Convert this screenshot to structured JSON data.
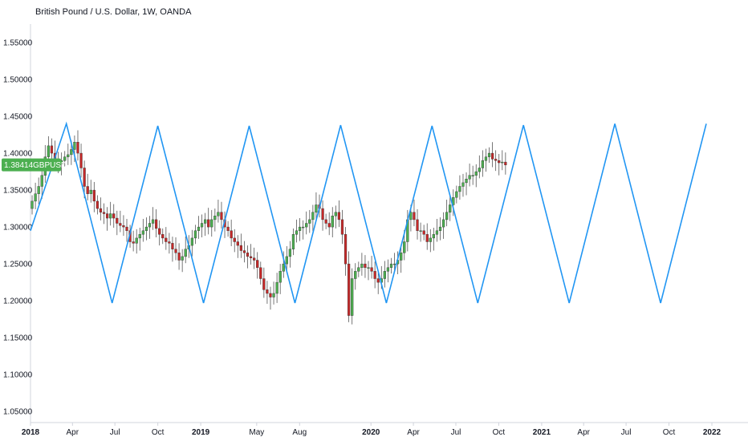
{
  "header": {
    "title": "British Pound / U.S. Dollar, 1W, OANDA"
  },
  "price_tag": {
    "price": "1.38414",
    "symbol": "GBPUSD",
    "color": "#4caf50"
  },
  "colors": {
    "up": "#4caf50",
    "down": "#c62828",
    "wave": "#2196f3",
    "axis": "#d1d4dc"
  },
  "chart_data": {
    "type": "candlestick",
    "title": "British Pound / U.S. Dollar, 1W, OANDA",
    "y_ticks": [
      "1.55000",
      "1.50000",
      "1.45000",
      "1.40000",
      "1.35000",
      "1.30000",
      "1.25000",
      "1.20000",
      "1.15000",
      "1.10000",
      "1.05000"
    ],
    "ylim": [
      1.035,
      1.575
    ],
    "x_ticks": [
      {
        "label": "2018",
        "date": "2018-01-01",
        "bold": true
      },
      {
        "label": "Apr",
        "date": "2018-04-01",
        "bold": false
      },
      {
        "label": "Jul",
        "date": "2018-07-01",
        "bold": false
      },
      {
        "label": "Oct",
        "date": "2018-10-01",
        "bold": false
      },
      {
        "label": "2019",
        "date": "2019-01-01",
        "bold": true
      },
      {
        "label": "May",
        "date": "2019-05-01",
        "bold": false
      },
      {
        "label": "Aug",
        "date": "2019-08-01",
        "bold": false
      },
      {
        "label": "2020",
        "date": "2020-01-01",
        "bold": true
      },
      {
        "label": "Apr",
        "date": "2020-04-01",
        "bold": false
      },
      {
        "label": "Jul",
        "date": "2020-07-01",
        "bold": false
      },
      {
        "label": "Oct",
        "date": "2020-10-01",
        "bold": false
      },
      {
        "label": "2021",
        "date": "2021-01-01",
        "bold": true
      },
      {
        "label": "Apr",
        "date": "2021-04-01",
        "bold": false
      },
      {
        "label": "Jul",
        "date": "2021-07-01",
        "bold": false
      },
      {
        "label": "Oct",
        "date": "2021-10-01",
        "bold": false
      },
      {
        "label": "2022",
        "date": "2022-01-01",
        "bold": true
      }
    ],
    "price_closes": [
      1.335,
      1.345,
      1.355,
      1.37,
      1.395,
      1.41,
      1.4,
      1.388,
      1.385,
      1.39,
      1.395,
      1.398,
      1.405,
      1.415,
      1.4,
      1.38,
      1.355,
      1.345,
      1.35,
      1.335,
      1.325,
      1.32,
      1.318,
      1.312,
      1.318,
      1.312,
      1.305,
      1.302,
      1.3,
      1.295,
      1.28,
      1.278,
      1.285,
      1.29,
      1.295,
      1.3,
      1.305,
      1.31,
      1.298,
      1.29,
      1.285,
      1.28,
      1.278,
      1.27,
      1.265,
      1.255,
      1.26,
      1.27,
      1.275,
      1.285,
      1.295,
      1.3,
      1.305,
      1.31,
      1.3,
      1.31,
      1.315,
      1.32,
      1.31,
      1.3,
      1.295,
      1.285,
      1.28,
      1.275,
      1.268,
      1.265,
      1.26,
      1.258,
      1.255,
      1.245,
      1.23,
      1.215,
      1.21,
      1.205,
      1.21,
      1.225,
      1.24,
      1.25,
      1.26,
      1.27,
      1.29,
      1.295,
      1.3,
      1.3,
      1.305,
      1.31,
      1.32,
      1.33,
      1.325,
      1.31,
      1.305,
      1.3,
      1.315,
      1.32,
      1.31,
      1.29,
      1.25,
      1.18,
      1.23,
      1.24,
      1.245,
      1.25,
      1.245,
      1.245,
      1.24,
      1.23,
      1.225,
      1.23,
      1.24,
      1.245,
      1.25,
      1.25,
      1.255,
      1.265,
      1.28,
      1.31,
      1.32,
      1.31,
      1.295,
      1.295,
      1.29,
      1.28,
      1.285,
      1.29,
      1.295,
      1.3,
      1.31,
      1.32,
      1.33,
      1.34,
      1.348,
      1.355,
      1.36,
      1.365,
      1.37,
      1.37,
      1.375,
      1.38,
      1.39,
      1.395,
      1.4,
      1.392,
      1.39,
      1.387,
      1.388,
      1.384
    ],
    "price_start": "2018-01-01",
    "series": [
      {
        "name": "",
        "type": "line",
        "points": [
          {
            "x": "2018-01-01",
            "y": 1.295
          },
          {
            "x": "2018-03-19",
            "y": 1.44
          },
          {
            "x": "2018-06-25",
            "y": 1.197
          },
          {
            "x": "2018-10-01",
            "y": 1.437
          },
          {
            "x": "2019-01-07",
            "y": 1.197
          },
          {
            "x": "2019-04-15",
            "y": 1.437
          },
          {
            "x": "2019-07-22",
            "y": 1.197
          },
          {
            "x": "2019-10-28",
            "y": 1.438
          },
          {
            "x": "2020-02-03",
            "y": 1.197
          },
          {
            "x": "2020-05-11",
            "y": 1.437
          },
          {
            "x": "2020-08-17",
            "y": 1.197
          },
          {
            "x": "2020-11-23",
            "y": 1.438
          },
          {
            "x": "2021-03-01",
            "y": 1.197
          },
          {
            "x": "2021-06-07",
            "y": 1.44
          },
          {
            "x": "2021-09-13",
            "y": 1.197
          },
          {
            "x": "2021-12-20",
            "y": 1.44
          }
        ]
      }
    ],
    "grid": false,
    "legend": "none"
  }
}
